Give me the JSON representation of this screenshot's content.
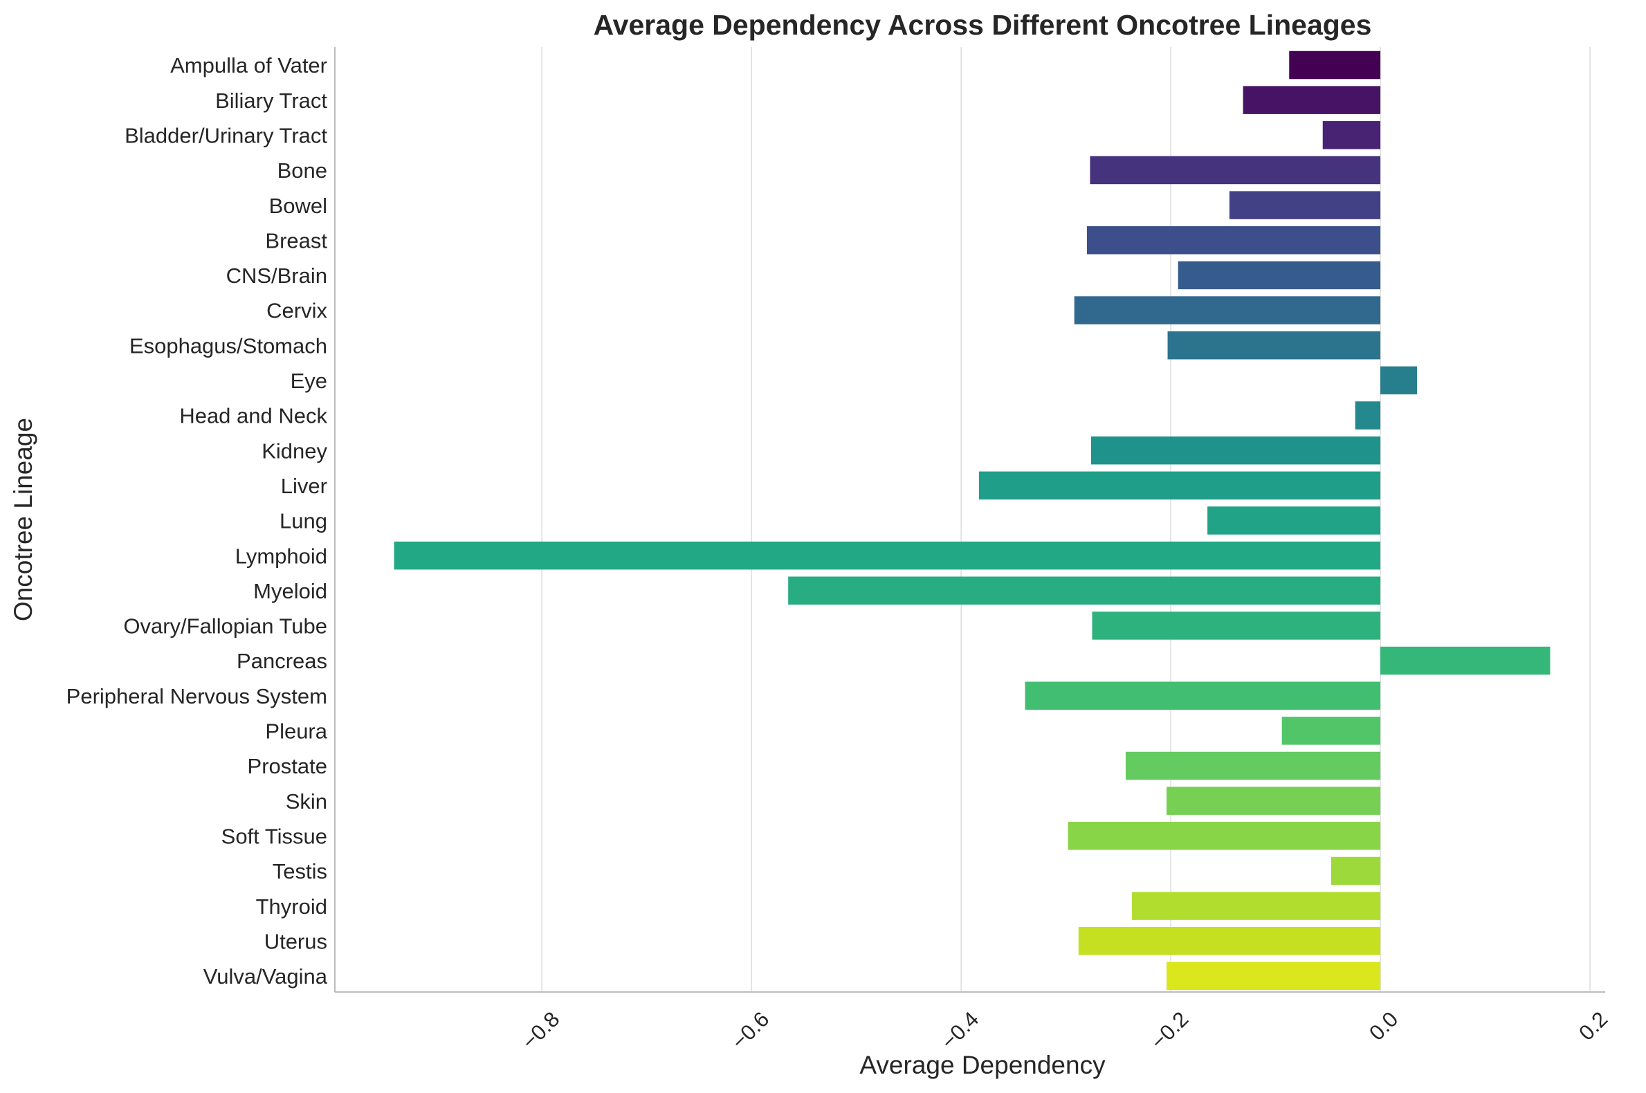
{
  "chart_data": {
    "type": "bar",
    "orientation": "horizontal",
    "title": "Average Dependency Across Different Oncotree Lineages",
    "xlabel": "Average Dependency",
    "ylabel": "Oncotree Lineage",
    "xlim": [
      -0.9975,
      0.2145
    ],
    "xticks": [
      -0.8,
      -0.6,
      -0.4,
      -0.2,
      0.0,
      0.2
    ],
    "xtick_labels": [
      "−0.8",
      "−0.6",
      "−0.4",
      "−0.2",
      "0.0",
      "0.2"
    ],
    "grid": "vertical",
    "palette": "viridis",
    "categories": [
      "Ampulla of Vater",
      "Biliary Tract",
      "Bladder/Urinary Tract",
      "Bone",
      "Bowel",
      "Breast",
      "CNS/Brain",
      "Cervix",
      "Esophagus/Stomach",
      "Eye",
      "Head and Neck",
      "Kidney",
      "Liver",
      "Lung",
      "Lymphoid",
      "Myeloid",
      "Ovary/Fallopian Tube",
      "Pancreas",
      "Peripheral Nervous System",
      "Pleura",
      "Prostate",
      "Skin",
      "Soft Tissue",
      "Testis",
      "Thyroid",
      "Uterus",
      "Vulva/Vagina"
    ],
    "values": [
      -0.087,
      -0.131,
      -0.055,
      -0.277,
      -0.144,
      -0.28,
      -0.193,
      -0.292,
      -0.203,
      0.035,
      -0.024,
      -0.276,
      -0.383,
      -0.165,
      -0.941,
      -0.565,
      -0.275,
      0.162,
      -0.339,
      -0.094,
      -0.243,
      -0.204,
      -0.298,
      -0.047,
      -0.237,
      -0.288,
      -0.204
    ],
    "colors": [
      "#440154",
      "#471365",
      "#482374",
      "#46337e",
      "#424186",
      "#3c4f8a",
      "#365c8d",
      "#31688e",
      "#2c738e",
      "#277f8e",
      "#23898e",
      "#20928c",
      "#1f9e89",
      "#20a386",
      "#22a884",
      "#27ad81",
      "#2db27d",
      "#35b779",
      "#42be71",
      "#52c569",
      "#63cb5f",
      "#75d054",
      "#89d548",
      "#9dd93b",
      "#b1dd2f",
      "#c5e021",
      "#d9e71c"
    ]
  }
}
